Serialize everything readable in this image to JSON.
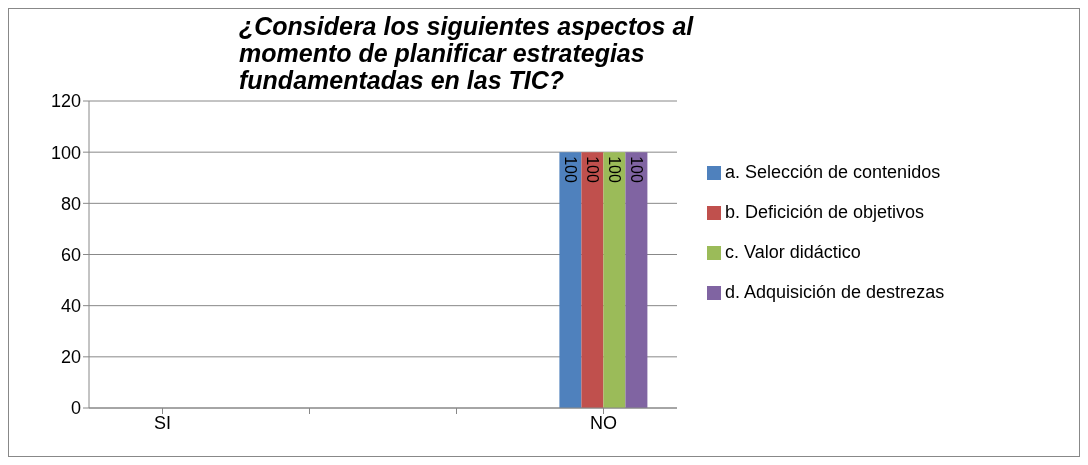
{
  "chart_data": {
    "type": "bar",
    "title": "¿Considera los siguientes aspectos al momento de planificar estrategias fundamentadas en las TIC?",
    "categories": [
      "SI",
      null,
      null,
      "NO"
    ],
    "series": [
      {
        "name": "a. Selección de contenidos",
        "color": "#4f81bd",
        "values": [
          0,
          null,
          null,
          100
        ],
        "value_labels": [
          null,
          null,
          null,
          "100"
        ]
      },
      {
        "name": "b. Deficición de objetivos",
        "color": "#c0504d",
        "values": [
          0,
          null,
          null,
          100
        ],
        "value_labels": [
          null,
          null,
          null,
          "100"
        ]
      },
      {
        "name": "c. Valor didáctico",
        "color": "#9bbb59",
        "values": [
          0,
          null,
          null,
          100
        ],
        "value_labels": [
          null,
          null,
          null,
          "100"
        ]
      },
      {
        "name": "d. Adquisición de destrezas",
        "color": "#8064a2",
        "values": [
          0,
          null,
          null,
          100
        ],
        "value_labels": [
          null,
          null,
          null,
          "100"
        ]
      }
    ],
    "ylim": [
      0,
      120
    ],
    "yticks": [
      0,
      20,
      40,
      60,
      80,
      100,
      120
    ],
    "grid": "y",
    "legend": "right"
  }
}
